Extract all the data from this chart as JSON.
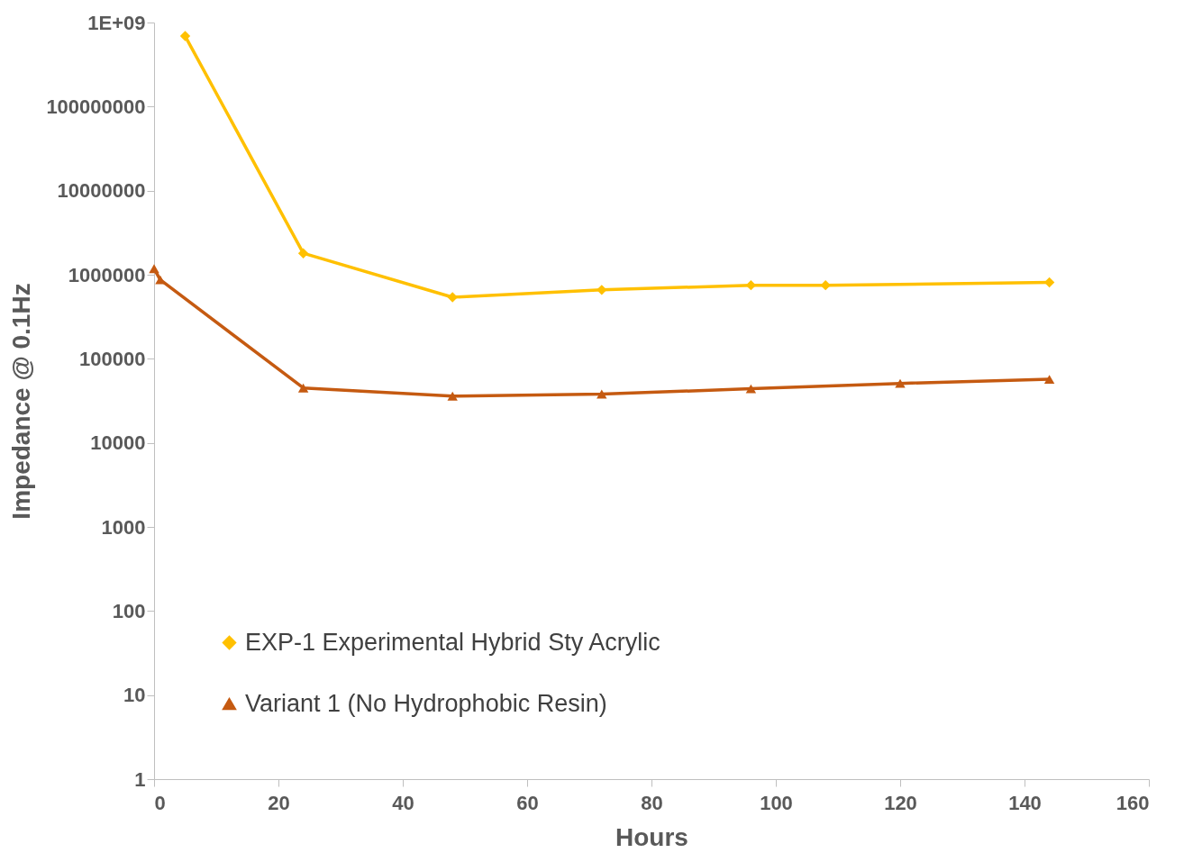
{
  "chart_data": {
    "type": "line",
    "xlabel": "Hours",
    "ylabel": "Impedance @ 0.1Hz",
    "log": "y",
    "xlim": [
      0,
      160
    ],
    "xticks": [
      0,
      20,
      40,
      60,
      80,
      100,
      120,
      140,
      160
    ],
    "ylim": [
      1,
      1000000000
    ],
    "yticks": [
      1,
      10,
      100,
      1000,
      10000,
      100000,
      1000000,
      10000000,
      100000000,
      {
        "value": 1000000000,
        "label": "1E+09"
      }
    ],
    "grid": false,
    "legend": "bottom left",
    "series": [
      {
        "name": "EXP-1 Experimental Hybrid Sty Acrylic",
        "color": "#ffc000",
        "marker": "diamond",
        "x": [
          5,
          24,
          48,
          72,
          96,
          108,
          144
        ],
        "values": [
          690000000,
          1800000,
          540000,
          660000,
          750000,
          750000,
          810000
        ]
      },
      {
        "name": "Variant 1 (No Hydrophobic Resin)",
        "color": "#c55a11",
        "marker": "triangle",
        "x": [
          0,
          1,
          24,
          48,
          72,
          96,
          120,
          144
        ],
        "values": [
          1180000,
          870000,
          45000,
          36000,
          38000,
          44000,
          51000,
          57000
        ]
      }
    ]
  }
}
